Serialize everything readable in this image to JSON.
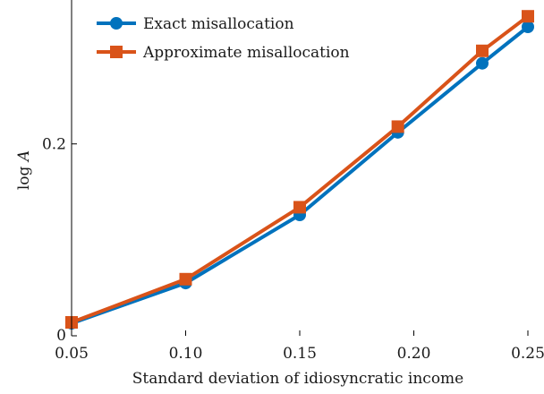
{
  "chart_data": {
    "type": "line",
    "xlabel": "Standard deviation of idiosyncratic income",
    "ylabel_prefix": "log ",
    "ylabel_var": "A",
    "x": [
      0.05,
      0.1,
      0.15,
      0.2,
      0.25
    ],
    "xlim": [
      0.05,
      0.25
    ],
    "ylim": [
      0,
      0.35
    ],
    "x_ticks": [
      {
        "value": 0.05,
        "label": "0.05"
      },
      {
        "value": 0.1,
        "label": "0.10"
      },
      {
        "value": 0.15,
        "label": "0.15"
      },
      {
        "value": 0.2,
        "label": "0.20"
      },
      {
        "value": 0.25,
        "label": "0.25"
      }
    ],
    "y_ticks": [
      {
        "value": 0,
        "label": "0"
      },
      {
        "value": 0.2,
        "label": "0.2"
      }
    ],
    "grid": false,
    "legend_position": "top-left",
    "series": [
      {
        "name": "Exact misallocation",
        "color": "#0072BD",
        "marker": "circle",
        "points": [
          [
            0.05,
            0.013
          ],
          [
            0.1,
            0.055
          ],
          [
            0.15,
            0.126
          ],
          [
            0.193,
            0.212
          ],
          [
            0.23,
            0.284
          ],
          [
            0.25,
            0.322
          ]
        ]
      },
      {
        "name": "Approximate misallocation",
        "color": "#D95319",
        "marker": "square",
        "points": [
          [
            0.05,
            0.014
          ],
          [
            0.1,
            0.059
          ],
          [
            0.15,
            0.134
          ],
          [
            0.193,
            0.218
          ],
          [
            0.23,
            0.297
          ],
          [
            0.25,
            0.333
          ]
        ]
      }
    ]
  }
}
